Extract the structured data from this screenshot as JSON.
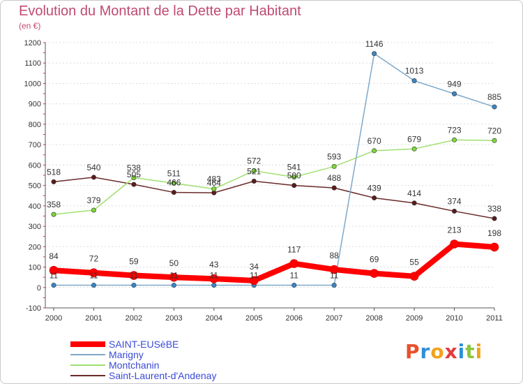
{
  "title": "Evolution du Montant de la Dette par Habitant",
  "unit_label": "(en €)",
  "logo": {
    "text": "Proxiti",
    "colors": [
      "#e8502a",
      "#2f8fd8",
      "#f2a21b",
      "#e23c3c",
      "#2f8fd8",
      "#8cc63f",
      "#f2a21b"
    ]
  },
  "chart_data": {
    "type": "line",
    "title": "Evolution du Montant de la Dette par Habitant",
    "ylabel": "(en €)",
    "xlabel": "",
    "x": [
      "2000",
      "2001",
      "2002",
      "2003",
      "2004",
      "2005",
      "2006",
      "2007",
      "2008",
      "2009",
      "2010",
      "2011"
    ],
    "ylim": [
      -100,
      1200
    ],
    "yticks": [
      -100,
      0,
      100,
      200,
      300,
      400,
      500,
      600,
      700,
      800,
      900,
      1000,
      1100,
      1200
    ],
    "grid": true,
    "legend_position": "bottom-left",
    "series": [
      {
        "name": "SAINT-EUSèBE",
        "color": "#ff0000",
        "width": 8,
        "values": [
          84,
          72,
          59,
          50,
          43,
          34,
          117,
          88,
          69,
          55,
          213,
          198
        ]
      },
      {
        "name": "Marigny",
        "color": "#7fa8c8",
        "width": 1.5,
        "values": [
          11,
          11,
          11,
          11,
          11,
          11,
          11,
          11,
          1146,
          1013,
          949,
          885
        ]
      },
      {
        "name": "Montchanin",
        "color": "#a0e070",
        "width": 1.5,
        "values": [
          358,
          379,
          538,
          511,
          483,
          572,
          541,
          593,
          670,
          679,
          723,
          720
        ]
      },
      {
        "name": "Saint-Laurent-d'Andenay",
        "color": "#6a2a2a",
        "width": 1.5,
        "values": [
          518,
          540,
          505,
          466,
          464,
          521,
          500,
          488,
          439,
          414,
          374,
          338
        ]
      }
    ],
    "markers": {
      "SAINT-EUSèBE": "#ff0000",
      "Marigny": "#3a86c8",
      "Montchanin": "#7ed63a",
      "Saint-Laurent-d'Andenay": "#5a1c1c"
    }
  }
}
